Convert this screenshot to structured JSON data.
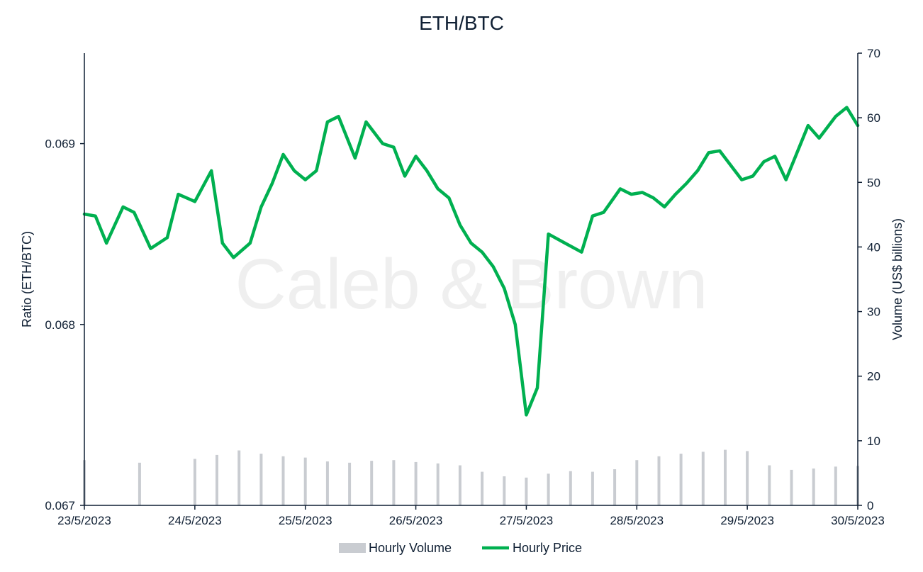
{
  "chart_data": {
    "type": "line",
    "title": "ETH/BTC",
    "watermark": "Caleb & Brown",
    "ylabel_left": "Ratio (ETH/BTC)",
    "ylabel_right": "Volume (US$ billions)",
    "x_tick_labels": [
      "23/5/2023",
      "24/5/2023",
      "25/5/2023",
      "26/5/2023",
      "27/5/2023",
      "28/5/2023",
      "29/5/2023",
      "30/5/2023"
    ],
    "y_left_ticks": [
      "0.067",
      "0.068",
      "0.069"
    ],
    "y_left_lim": [
      0.067,
      0.0695
    ],
    "y_right_ticks": [
      "0",
      "10",
      "20",
      "30",
      "40",
      "50",
      "60",
      "70"
    ],
    "y_right_lim": [
      0,
      70
    ],
    "grid": false,
    "legend_position": "bottom-center",
    "colors": {
      "price": "#00b050",
      "volume": "#c9ccd1",
      "text": "#0f1f33"
    },
    "series": [
      {
        "name": "Hourly Price",
        "kind": "line",
        "axis": "left",
        "x_days": [
          0,
          0.1,
          0.2,
          0.35,
          0.45,
          0.6,
          0.75,
          0.85,
          1.0,
          1.15,
          1.25,
          1.35,
          1.5,
          1.6,
          1.7,
          1.8,
          1.9,
          2.0,
          2.1,
          2.2,
          2.3,
          2.45,
          2.55,
          2.7,
          2.8,
          2.9,
          3.0,
          3.1,
          3.2,
          3.3,
          3.4,
          3.5,
          3.6,
          3.7,
          3.8,
          3.9,
          4.0,
          4.1,
          4.2,
          4.35,
          4.5,
          4.6,
          4.7,
          4.85,
          4.95,
          5.05,
          5.15,
          5.25,
          5.35,
          5.45,
          5.55,
          5.65,
          5.75,
          5.85,
          5.95,
          6.05,
          6.15,
          6.25,
          6.35,
          6.45,
          6.55,
          6.65,
          6.8,
          6.9,
          7.0
        ],
        "values": [
          0.06861,
          0.0686,
          0.06845,
          0.06865,
          0.06862,
          0.06842,
          0.06848,
          0.06872,
          0.06868,
          0.06885,
          0.06845,
          0.06837,
          0.06845,
          0.06865,
          0.06878,
          0.06894,
          0.06885,
          0.0688,
          0.06885,
          0.06912,
          0.06915,
          0.06892,
          0.06912,
          0.069,
          0.06898,
          0.06882,
          0.06893,
          0.06885,
          0.06875,
          0.0687,
          0.06855,
          0.06845,
          0.0684,
          0.06832,
          0.0682,
          0.068,
          0.0675,
          0.06765,
          0.0685,
          0.06845,
          0.0684,
          0.0686,
          0.06862,
          0.06875,
          0.06872,
          0.06873,
          0.0687,
          0.06865,
          0.06872,
          0.06878,
          0.06885,
          0.06895,
          0.06896,
          0.06888,
          0.0688,
          0.06882,
          0.0689,
          0.06893,
          0.0688,
          0.06895,
          0.0691,
          0.06903,
          0.06915,
          0.0692,
          0.0691
        ]
      },
      {
        "name": "Hourly Volume",
        "kind": "bar",
        "axis": "right",
        "x_days": [
          0,
          0.5,
          1.0,
          1.2,
          1.4,
          1.6,
          1.8,
          2.0,
          2.2,
          2.4,
          2.6,
          2.8,
          3.0,
          3.2,
          3.4,
          3.6,
          3.8,
          4.0,
          4.2,
          4.4,
          4.6,
          4.8,
          5.0,
          5.2,
          5.4,
          5.6,
          5.8,
          6.0,
          6.2,
          6.4,
          6.6,
          6.8,
          7.0
        ],
        "values": [
          7.0,
          6.6,
          7.2,
          7.8,
          8.5,
          8.0,
          7.6,
          7.4,
          6.8,
          6.6,
          6.9,
          7.0,
          6.7,
          6.5,
          6.2,
          5.2,
          4.5,
          4.3,
          4.9,
          5.3,
          5.2,
          5.6,
          7.0,
          7.6,
          8.0,
          8.3,
          8.6,
          8.4,
          6.2,
          5.5,
          5.7,
          6.0,
          6.1
        ]
      }
    ]
  }
}
